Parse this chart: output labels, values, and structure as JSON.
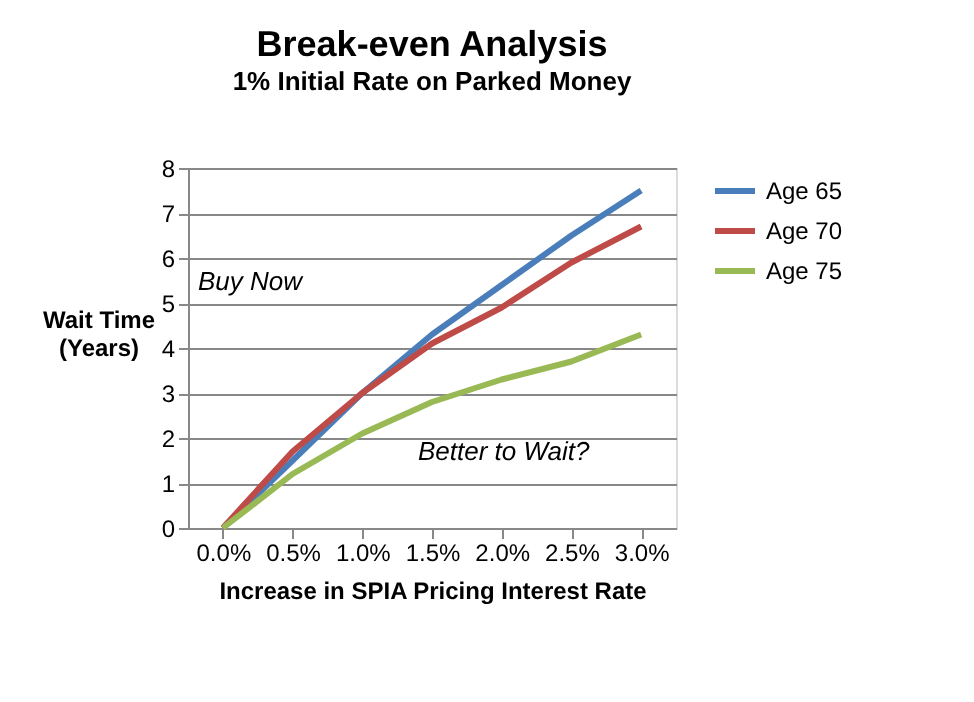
{
  "chart_data": {
    "type": "line",
    "title": "Break-even Analysis",
    "subtitle": "1% Initial Rate on Parked Money",
    "xlabel": "Increase in SPIA Pricing Interest Rate",
    "ylabel": "Wait Time (Years)",
    "categories": [
      "0.0%",
      "0.5%",
      "1.0%",
      "1.5%",
      "2.0%",
      "2.5%",
      "3.0%"
    ],
    "series": [
      {
        "name": "Age 65",
        "color": "#4a7ebb",
        "values": [
          0,
          1.5,
          3.0,
          4.3,
          5.4,
          6.5,
          7.5
        ]
      },
      {
        "name": "Age 70",
        "color": "#be4b48",
        "values": [
          0,
          1.7,
          3.0,
          4.1,
          4.9,
          5.9,
          6.7
        ]
      },
      {
        "name": "Age 75",
        "color": "#98b954",
        "values": [
          0,
          1.2,
          2.1,
          2.8,
          3.3,
          3.7,
          4.3
        ]
      }
    ],
    "ylim": [
      0,
      8
    ],
    "yticks": [
      0,
      1,
      2,
      3,
      4,
      5,
      6,
      7,
      8
    ],
    "grid": "y",
    "legend": "right",
    "marker": "none",
    "line_style": "solid",
    "annotations": [
      "Buy Now",
      "Better to Wait?"
    ]
  }
}
